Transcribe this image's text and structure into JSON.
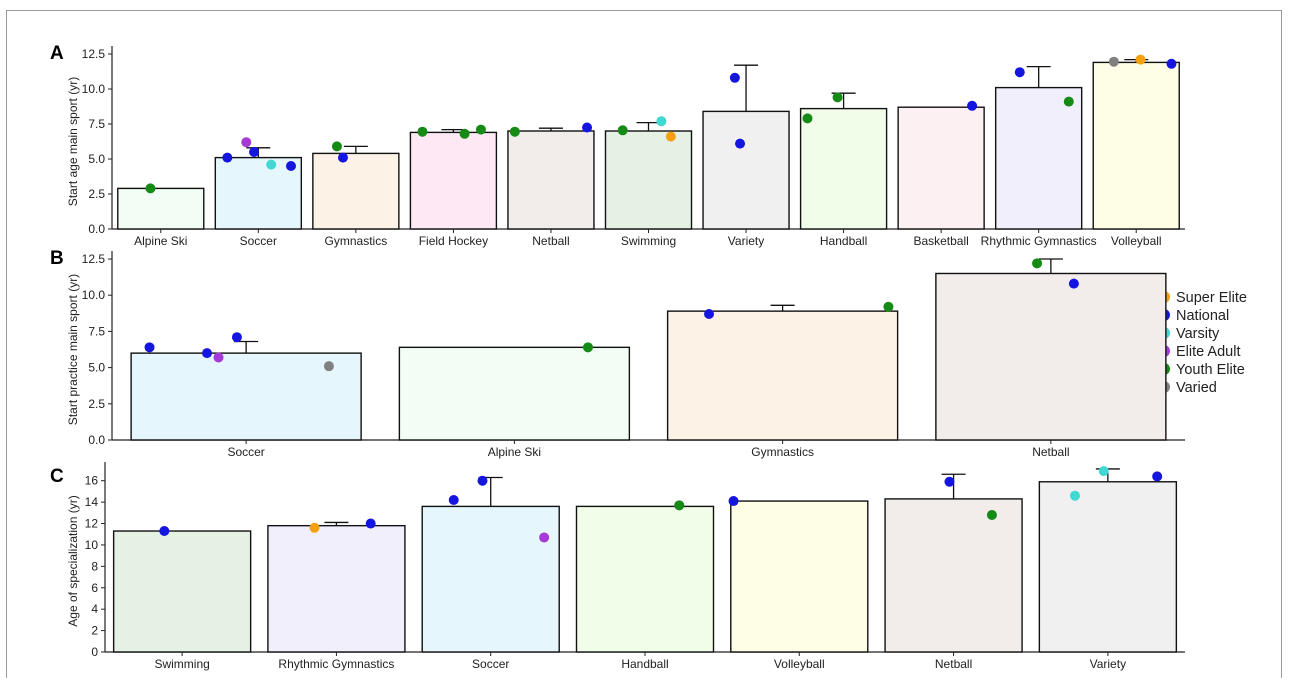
{
  "legend": {
    "items": [
      {
        "name": "Super Elite",
        "color": "#f5a10f"
      },
      {
        "name": "National",
        "color": "#1515e0"
      },
      {
        "name": "Varsity",
        "color": "#40d8d2"
      },
      {
        "name": "Elite Adult",
        "color": "#a53ad8"
      },
      {
        "name": "Youth Elite",
        "color": "#158a15"
      },
      {
        "name": "Varied",
        "color": "#808080"
      }
    ]
  },
  "chart_data": [
    {
      "type": "bar",
      "panel_label": "A",
      "ylabel": "Start age main sport (yr)",
      "ylim": [
        0,
        12.5
      ],
      "yticks": [
        0.0,
        2.5,
        5.0,
        7.5,
        10.0,
        12.5
      ],
      "categories": [
        "Alpine Ski",
        "Soccer",
        "Gymnastics",
        "Field Hockey",
        "Netball",
        "Swimming",
        "Variety",
        "Handball",
        "Basketball",
        "Rhythmic Gymnastics",
        "Volleyball"
      ],
      "values": [
        2.9,
        5.1,
        5.4,
        6.9,
        7.0,
        7.0,
        8.4,
        8.6,
        8.7,
        10.1,
        11.9
      ],
      "error": [
        null,
        0.7,
        0.5,
        0.2,
        0.2,
        0.6,
        3.3,
        1.1,
        null,
        1.5,
        0.2
      ],
      "bar_colors": [
        "#f2fdf6",
        "#e6f6fd",
        "#fdf2e6",
        "#fde8f4",
        "#f2ecea",
        "#e6f1e6",
        "#f0f0f0",
        "#f1fde9",
        "#fdf0f3",
        "#f2effd",
        "#fefde6"
      ],
      "points": [
        {
          "cat": 0,
          "dx": -0.12,
          "y": 2.9,
          "group": "Youth Elite"
        },
        {
          "cat": 1,
          "dx": -0.14,
          "y": 6.2,
          "group": "Elite Adult"
        },
        {
          "cat": 1,
          "dx": -0.36,
          "y": 5.1,
          "group": "National"
        },
        {
          "cat": 1,
          "dx": -0.05,
          "y": 5.5,
          "group": "National"
        },
        {
          "cat": 1,
          "dx": 0.15,
          "y": 4.6,
          "group": "Varsity"
        },
        {
          "cat": 1,
          "dx": 0.38,
          "y": 4.5,
          "group": "National"
        },
        {
          "cat": 2,
          "dx": -0.22,
          "y": 5.9,
          "group": "Youth Elite"
        },
        {
          "cat": 2,
          "dx": -0.15,
          "y": 5.1,
          "group": "National"
        },
        {
          "cat": 3,
          "dx": -0.36,
          "y": 6.95,
          "group": "Youth Elite"
        },
        {
          "cat": 3,
          "dx": 0.13,
          "y": 6.8,
          "group": "Youth Elite"
        },
        {
          "cat": 3,
          "dx": 0.32,
          "y": 7.1,
          "group": "Youth Elite"
        },
        {
          "cat": 4,
          "dx": -0.42,
          "y": 6.95,
          "group": "Youth Elite"
        },
        {
          "cat": 4,
          "dx": 0.42,
          "y": 7.25,
          "group": "National"
        },
        {
          "cat": 5,
          "dx": -0.3,
          "y": 7.05,
          "group": "Youth Elite"
        },
        {
          "cat": 5,
          "dx": 0.15,
          "y": 7.7,
          "group": "Varsity"
        },
        {
          "cat": 5,
          "dx": 0.26,
          "y": 6.6,
          "group": "Super Elite"
        },
        {
          "cat": 6,
          "dx": -0.13,
          "y": 10.8,
          "group": "National"
        },
        {
          "cat": 6,
          "dx": -0.07,
          "y": 6.1,
          "group": "National"
        },
        {
          "cat": 7,
          "dx": -0.07,
          "y": 9.4,
          "group": "Youth Elite"
        },
        {
          "cat": 7,
          "dx": -0.42,
          "y": 7.9,
          "group": "Youth Elite"
        },
        {
          "cat": 8,
          "dx": 0.36,
          "y": 8.8,
          "group": "National"
        },
        {
          "cat": 9,
          "dx": -0.22,
          "y": 11.2,
          "group": "National"
        },
        {
          "cat": 9,
          "dx": 0.35,
          "y": 9.1,
          "group": "Youth Elite"
        },
        {
          "cat": 10,
          "dx": -0.26,
          "y": 11.95,
          "group": "Varied"
        },
        {
          "cat": 10,
          "dx": 0.05,
          "y": 12.1,
          "group": "Super Elite"
        },
        {
          "cat": 10,
          "dx": 0.41,
          "y": 11.8,
          "group": "National"
        }
      ]
    },
    {
      "type": "bar",
      "panel_label": "B",
      "ylabel": "Start practice main sport (yr)",
      "ylim": [
        0,
        12.5
      ],
      "yticks": [
        0.0,
        2.5,
        5.0,
        7.5,
        10.0,
        12.5
      ],
      "categories": [
        "Soccer",
        "Alpine Ski",
        "Gymnastics",
        "Netball"
      ],
      "values": [
        6.0,
        6.4,
        8.9,
        11.5
      ],
      "error": [
        0.8,
        null,
        0.4,
        1.0
      ],
      "bar_colors": [
        "#e6f6fd",
        "#f2fdf6",
        "#fdf2e6",
        "#f2ecea"
      ],
      "points": [
        {
          "cat": 0,
          "dx": -0.42,
          "y": 6.4,
          "group": "National"
        },
        {
          "cat": 0,
          "dx": -0.17,
          "y": 6.0,
          "group": "National"
        },
        {
          "cat": 0,
          "dx": -0.12,
          "y": 5.7,
          "group": "Elite Adult"
        },
        {
          "cat": 0,
          "dx": -0.04,
          "y": 7.1,
          "group": "National"
        },
        {
          "cat": 0,
          "dx": 0.36,
          "y": 5.1,
          "group": "Varied"
        },
        {
          "cat": 1,
          "dx": 0.32,
          "y": 6.4,
          "group": "Youth Elite"
        },
        {
          "cat": 2,
          "dx": -0.32,
          "y": 8.7,
          "group": "National"
        },
        {
          "cat": 2,
          "dx": 0.46,
          "y": 9.2,
          "group": "Youth Elite"
        },
        {
          "cat": 3,
          "dx": -0.06,
          "y": 12.2,
          "group": "Youth Elite"
        },
        {
          "cat": 3,
          "dx": 0.1,
          "y": 10.8,
          "group": "National"
        }
      ]
    },
    {
      "type": "bar",
      "panel_label": "C",
      "ylabel": "Age of specialization (yr)",
      "ylim": [
        0,
        17
      ],
      "yticks": [
        0,
        2,
        4,
        6,
        8,
        10,
        12,
        14,
        16
      ],
      "categories": [
        "Swimming",
        "Rhythmic Gymnastics",
        "Soccer",
        "Handball",
        "Volleyball",
        "Netball",
        "Variety"
      ],
      "values": [
        11.3,
        11.8,
        13.6,
        13.6,
        14.1,
        14.3,
        15.9
      ],
      "error": [
        null,
        0.3,
        2.7,
        null,
        null,
        2.3,
        1.2
      ],
      "bar_colors": [
        "#e6f1e6",
        "#f2effd",
        "#e6f6fd",
        "#f1fde9",
        "#fefde6",
        "#f2ecea",
        "#f0f0f0"
      ],
      "points": [
        {
          "cat": 0,
          "dx": -0.13,
          "y": 11.3,
          "group": "National"
        },
        {
          "cat": 1,
          "dx": -0.16,
          "y": 11.6,
          "group": "Super Elite"
        },
        {
          "cat": 1,
          "dx": 0.25,
          "y": 12.0,
          "group": "National"
        },
        {
          "cat": 2,
          "dx": -0.27,
          "y": 14.2,
          "group": "National"
        },
        {
          "cat": 2,
          "dx": -0.06,
          "y": 16.0,
          "group": "National"
        },
        {
          "cat": 2,
          "dx": 0.39,
          "y": 10.7,
          "group": "Elite Adult"
        },
        {
          "cat": 3,
          "dx": 0.25,
          "y": 13.7,
          "group": "Youth Elite"
        },
        {
          "cat": 4,
          "dx": -0.48,
          "y": 14.1,
          "group": "National"
        },
        {
          "cat": 5,
          "dx": -0.03,
          "y": 15.9,
          "group": "National"
        },
        {
          "cat": 5,
          "dx": 0.28,
          "y": 12.8,
          "group": "Youth Elite"
        },
        {
          "cat": 6,
          "dx": -0.24,
          "y": 14.6,
          "group": "Varsity"
        },
        {
          "cat": 6,
          "dx": -0.03,
          "y": 16.9,
          "group": "Varsity"
        },
        {
          "cat": 6,
          "dx": 0.36,
          "y": 16.4,
          "group": "National"
        }
      ]
    }
  ]
}
